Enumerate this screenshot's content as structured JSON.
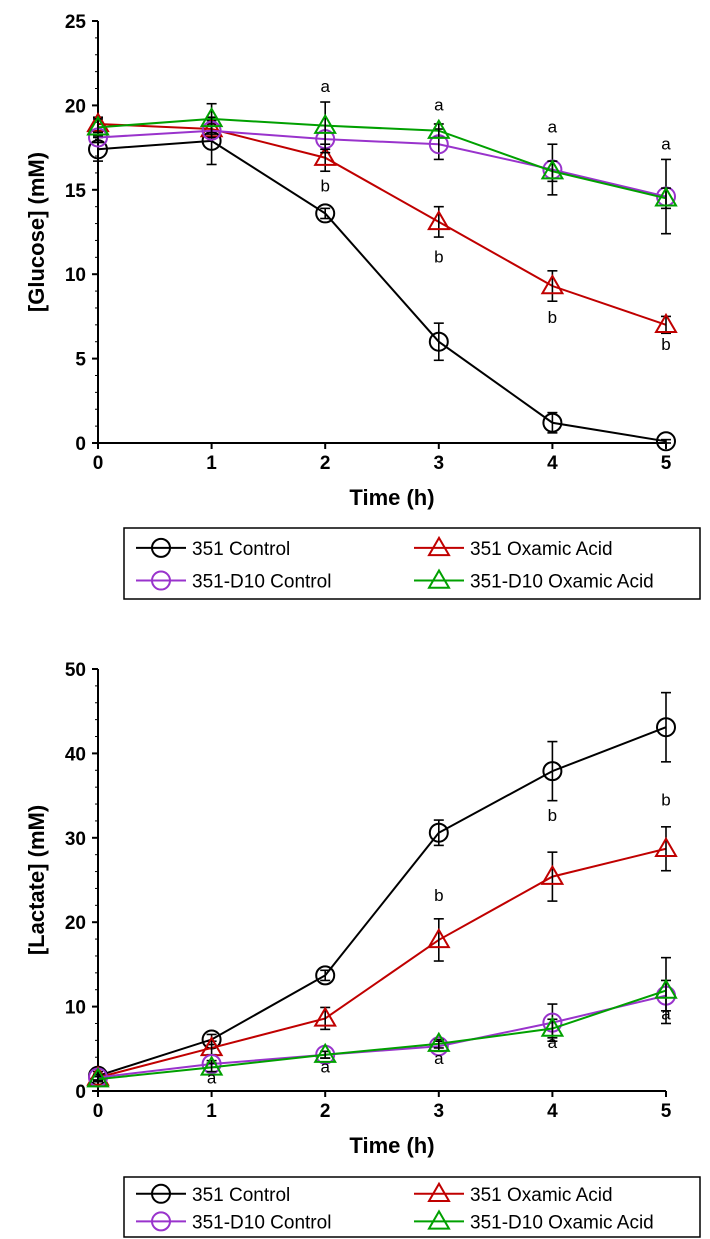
{
  "chart_data": [
    {
      "type": "line",
      "title": "",
      "xlabel": "Time (h)",
      "ylabel": "[Glucose] (mM)",
      "xlim": [
        0,
        5
      ],
      "ylim": [
        0,
        25
      ],
      "x_ticks": [
        "0",
        "1",
        "2",
        "3",
        "4",
        "5"
      ],
      "y_ticks": [
        "0",
        "5",
        "10",
        "15",
        "20",
        "25"
      ],
      "grid": false,
      "legend_position": "bottom",
      "x": [
        0,
        1,
        2,
        3,
        4,
        5
      ],
      "series": [
        {
          "name": "351 Control",
          "color": "#000000",
          "marker": "circle",
          "values": [
            17.4,
            17.9,
            13.6,
            6.0,
            1.2,
            0.1
          ],
          "errors": [
            0.7,
            1.4,
            0.3,
            1.1,
            0.6,
            0.1
          ]
        },
        {
          "name": "351 Oxamic Acid",
          "color": "#c00000",
          "marker": "triangle",
          "values": [
            18.9,
            18.6,
            16.9,
            13.1,
            9.3,
            7.0
          ],
          "errors": [
            0.4,
            0.5,
            0.8,
            0.9,
            0.9,
            0.5
          ]
        },
        {
          "name": "351-D10 Control",
          "color": "#9933cc",
          "marker": "circle",
          "values": [
            18.1,
            18.5,
            18.0,
            17.7,
            16.2,
            14.6
          ],
          "errors": [
            0.3,
            0.4,
            0.8,
            0.9,
            1.5,
            2.2
          ]
        },
        {
          "name": "351-D10 Oxamic Acid",
          "color": "#00a000",
          "marker": "triangle",
          "values": [
            18.7,
            19.2,
            18.8,
            18.5,
            16.1,
            14.5
          ],
          "errors": [
            0.5,
            0.9,
            1.4,
            0.4,
            0.6,
            0.6
          ]
        }
      ],
      "annotations": [
        {
          "x": 2,
          "y": 20.8,
          "text": "a"
        },
        {
          "x": 3,
          "y": 19.7,
          "text": "a"
        },
        {
          "x": 4,
          "y": 18.4,
          "text": "a"
        },
        {
          "x": 5,
          "y": 17.4,
          "text": "a"
        },
        {
          "x": 2,
          "y": 14.9,
          "text": "b"
        },
        {
          "x": 3,
          "y": 10.7,
          "text": "b"
        },
        {
          "x": 4,
          "y": 7.1,
          "text": "b"
        },
        {
          "x": 5,
          "y": 5.5,
          "text": "b"
        }
      ]
    },
    {
      "type": "line",
      "title": "",
      "xlabel": "Time (h)",
      "ylabel": "[Lactate] (mM)",
      "xlim": [
        0,
        5
      ],
      "ylim": [
        0,
        50
      ],
      "x_ticks": [
        "0",
        "1",
        "2",
        "3",
        "4",
        "5"
      ],
      "y_ticks": [
        "0",
        "10",
        "20",
        "30",
        "40",
        "50"
      ],
      "grid": false,
      "legend_position": "bottom",
      "x": [
        0,
        1,
        2,
        3,
        4,
        5
      ],
      "series": [
        {
          "name": "351 Control",
          "color": "#000000",
          "marker": "circle",
          "values": [
            1.8,
            6.1,
            13.7,
            30.6,
            37.9,
            43.1
          ],
          "errors": [
            0.5,
            0.6,
            0.6,
            1.5,
            3.5,
            4.1
          ]
        },
        {
          "name": "351 Oxamic Acid",
          "color": "#c00000",
          "marker": "triangle",
          "values": [
            1.6,
            5.1,
            8.6,
            17.9,
            25.4,
            28.7
          ],
          "errors": [
            0.4,
            0.8,
            1.3,
            2.5,
            2.9,
            2.6
          ]
        },
        {
          "name": "351-D10 Control",
          "color": "#9933cc",
          "marker": "circle",
          "values": [
            1.6,
            3.2,
            4.3,
            5.3,
            8.1,
            11.3
          ],
          "errors": [
            0.3,
            0.4,
            0.4,
            0.6,
            2.2,
            1.8
          ]
        },
        {
          "name": "351-D10 Oxamic Acid",
          "color": "#00a000",
          "marker": "triangle",
          "values": [
            1.4,
            2.8,
            4.3,
            5.6,
            7.4,
            11.9
          ],
          "errors": [
            0.3,
            0.5,
            0.4,
            0.5,
            1.1,
            3.9
          ]
        }
      ],
      "annotations": [
        {
          "x": 1,
          "y": 0.9,
          "text": "a"
        },
        {
          "x": 2,
          "y": 2.2,
          "text": "a"
        },
        {
          "x": 3,
          "y": 3.2,
          "text": "a"
        },
        {
          "x": 4,
          "y": 5.1,
          "text": "a"
        },
        {
          "x": 5,
          "y": 8.5,
          "text": "a"
        },
        {
          "x": 3,
          "y": 22.5,
          "text": "b"
        },
        {
          "x": 4,
          "y": 32.0,
          "text": "b"
        },
        {
          "x": 5,
          "y": 33.8,
          "text": "b"
        }
      ]
    }
  ]
}
